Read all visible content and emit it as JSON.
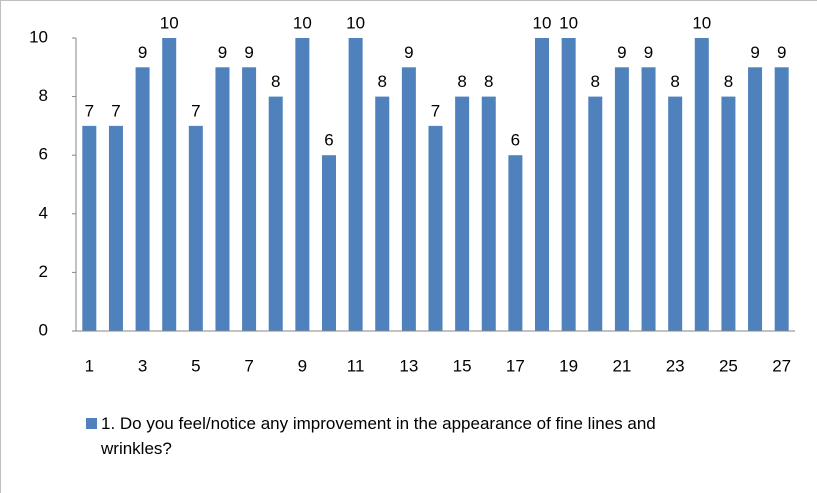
{
  "chart_data": {
    "type": "bar",
    "categories": [
      1,
      null,
      3,
      null,
      5,
      null,
      7,
      null,
      9,
      null,
      11,
      null,
      13,
      null,
      15,
      null,
      17,
      null,
      19,
      null,
      21,
      null,
      23,
      null,
      25,
      null,
      27
    ],
    "series": [
      {
        "name": "1. Do you feel/notice any improvement in the appearance of fine lines and wrinkles?",
        "color": "#4f81bd",
        "values": [
          7,
          7,
          9,
          10,
          7,
          9,
          9,
          8,
          10,
          6,
          10,
          8,
          9,
          7,
          8,
          8,
          6,
          10,
          10,
          8,
          9,
          9,
          8,
          10,
          8,
          9,
          9
        ]
      }
    ],
    "ylim": [
      0,
      10
    ],
    "yticks": [
      0,
      2,
      4,
      6,
      8,
      10
    ],
    "grid": false,
    "legend": "bottom"
  }
}
